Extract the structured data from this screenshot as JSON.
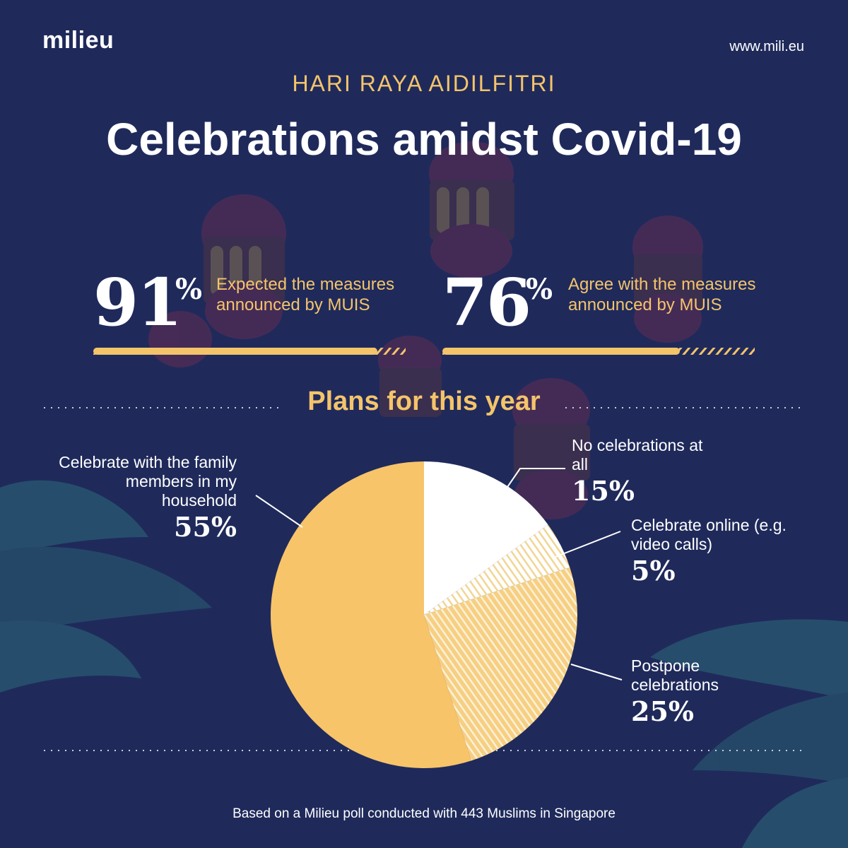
{
  "brand": {
    "logo": "milieu",
    "url": "www.mili.eu"
  },
  "header": {
    "kicker": "HARI RAYA AIDILFITRI",
    "title": "Celebrations amidst Covid-19"
  },
  "stats": [
    {
      "value": "91",
      "unit": "%",
      "text": "Expected the measures announced by MUIS",
      "fraction": 0.91
    },
    {
      "value": "76",
      "unit": "%",
      "text": "Agree with the measures announced by MUIS",
      "fraction": 0.76
    }
  ],
  "section": {
    "title": "Plans for this year"
  },
  "chart_data": {
    "type": "pie",
    "title": "Plans for this year",
    "categories": [
      "No celebrations at all",
      "Celebrate online (e.g. video calls)",
      "Postpone celebrations",
      "Celebrate with the family members in my household"
    ],
    "values": [
      15,
      5,
      25,
      55
    ],
    "labels": [
      "15%",
      "5%",
      "25%",
      "55%"
    ],
    "colors": [
      "#ffffff",
      "#f8e3b3",
      "#f6cf83",
      "#f7c46a"
    ],
    "fills": [
      "solid",
      "hatched",
      "hatched",
      "solid"
    ]
  },
  "labels": {
    "household": {
      "text": "Celebrate with the family members in my household",
      "pct": "55%"
    },
    "none": {
      "text": "No celebrations at all",
      "pct": "15%"
    },
    "online": {
      "text": "Celebrate online (e.g. video calls)",
      "pct": "5%"
    },
    "postpone": {
      "text": "Postpone celebrations",
      "pct": "25%"
    }
  },
  "footer": {
    "note": "Based on a Milieu poll conducted with 443 Muslims in Singapore"
  },
  "colors": {
    "background": "#1f2a5b",
    "accent": "#f4c46b",
    "text": "#ffffff"
  }
}
